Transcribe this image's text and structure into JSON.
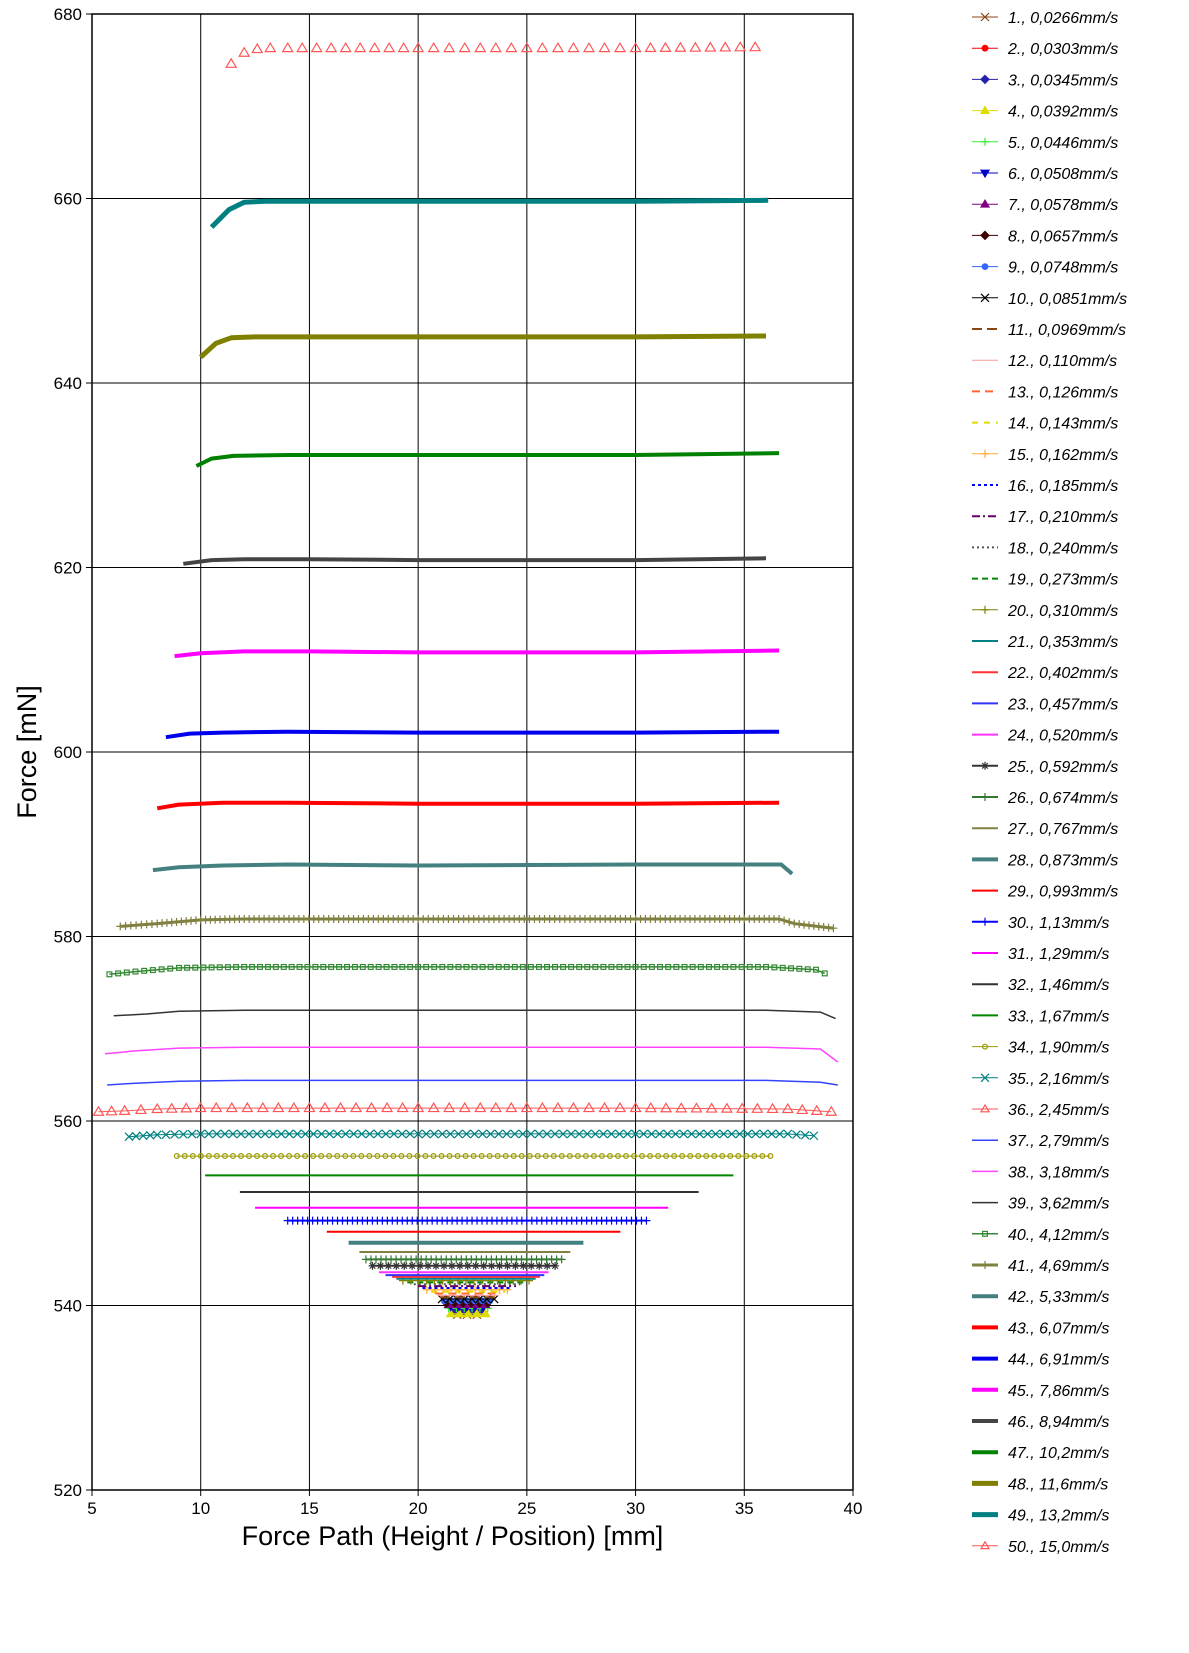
{
  "chart_data": {
    "type": "line",
    "xlabel": "Force Path  (Height / Position)  [mm]",
    "ylabel": "Force [mN]",
    "xlim": [
      5,
      40
    ],
    "ylim": [
      520,
      680
    ],
    "xticks": [
      5,
      10,
      15,
      20,
      25,
      30,
      35,
      40
    ],
    "yticks": [
      520,
      540,
      560,
      580,
      600,
      620,
      640,
      660,
      680
    ],
    "grid": true,
    "legend_position": "right",
    "series": [
      {
        "name": "1., 0,0266mm/s",
        "color": "#8B4513",
        "marker": "x",
        "lw": 1,
        "x": [
          21.8,
          22.7
        ],
        "y": [
          539,
          539
        ]
      },
      {
        "name": "2., 0,0303mm/s",
        "color": "#ff0000",
        "marker": "circle",
        "lw": 1,
        "x": [
          21.6,
          23.0
        ],
        "y": [
          539.3,
          539.3
        ]
      },
      {
        "name": "3., 0,0345mm/s",
        "color": "#2222aa",
        "marker": "diamond",
        "lw": 1,
        "x": [
          21.7,
          22.9
        ],
        "y": [
          539.5,
          539.5
        ]
      },
      {
        "name": "4., 0,0392mm/s",
        "color": "#dddd00",
        "marker": "triangle",
        "lw": 1,
        "x": [
          21.5,
          23.1
        ],
        "y": [
          539.1,
          539.1
        ]
      },
      {
        "name": "5., 0,0446mm/s",
        "color": "#33ee33",
        "marker": "plus",
        "lw": 1,
        "x": [
          21.4,
          23.2
        ],
        "y": [
          539.7,
          539.7
        ]
      },
      {
        "name": "6., 0,0508mm/s",
        "color": "#0000cc",
        "marker": "triangle-down",
        "lw": 1,
        "x": [
          21.5,
          23.0
        ],
        "y": [
          539.9,
          539.9
        ]
      },
      {
        "name": "7., 0,0578mm/s",
        "color": "#800080",
        "marker": "triangle",
        "lw": 1,
        "x": [
          21.4,
          23.1
        ],
        "y": [
          540.1,
          540.1
        ]
      },
      {
        "name": "8., 0,0657mm/s",
        "color": "#400000",
        "marker": "diamond",
        "lw": 1,
        "x": [
          21.3,
          23.2
        ],
        "y": [
          540.3,
          540.3
        ]
      },
      {
        "name": "9., 0,0748mm/s",
        "color": "#3366ff",
        "marker": "circle",
        "lw": 1,
        "x": [
          21.2,
          23.3
        ],
        "y": [
          540.5,
          540.5
        ]
      },
      {
        "name": "10., 0,0851mm/s",
        "color": "#000000",
        "marker": "x",
        "lw": 1,
        "x": [
          21.1,
          23.5
        ],
        "y": [
          540.7,
          540.7
        ]
      },
      {
        "name": "11., 0,0969mm/s",
        "color": "#8B4513",
        "dash": "10,5",
        "lw": 2,
        "x": [
          21.0,
          23.6
        ],
        "y": [
          540.9,
          540.9
        ]
      },
      {
        "name": "12., 0,110mm/s",
        "color": "#ff9999",
        "lw": 1,
        "x": [
          20.9,
          23.7
        ],
        "y": [
          541.1,
          541.1
        ]
      },
      {
        "name": "13., 0,126mm/s",
        "color": "#ff6633",
        "dash": "8,5",
        "lw": 2,
        "x": [
          20.8,
          23.8
        ],
        "y": [
          541.3,
          541.3
        ]
      },
      {
        "name": "14., 0,143mm/s",
        "color": "#dddd00",
        "dash": "6,6",
        "lw": 2,
        "x": [
          20.6,
          24.0
        ],
        "y": [
          541.5,
          541.5
        ]
      },
      {
        "name": "15., 0,162mm/s",
        "color": "#ffaa33",
        "marker": "plus",
        "lw": 1,
        "x": [
          20.4,
          24.1
        ],
        "y": [
          541.7,
          541.7
        ]
      },
      {
        "name": "16., 0,185mm/s",
        "color": "#0000ff",
        "dash": "3,3",
        "lw": 2,
        "x": [
          20.2,
          24.3
        ],
        "y": [
          541.9,
          541.9
        ]
      },
      {
        "name": "17., 0,210mm/s",
        "color": "#660066",
        "dash": "8,3,2,3",
        "lw": 2,
        "x": [
          20.0,
          24.5
        ],
        "y": [
          542.1,
          542.1
        ]
      },
      {
        "name": "18., 0,240mm/s",
        "color": "#555555",
        "dash": "2,3",
        "lw": 2,
        "x": [
          19.8,
          24.7
        ],
        "y": [
          542.3,
          542.3
        ]
      },
      {
        "name": "19., 0,273mm/s",
        "color": "#008800",
        "dash": "6,4",
        "lw": 2,
        "x": [
          19.5,
          24.9
        ],
        "y": [
          542.5,
          542.5
        ]
      },
      {
        "name": "20., 0,310mm/s",
        "color": "#808000",
        "marker": "plus",
        "lw": 1,
        "x": [
          19.3,
          25.1
        ],
        "y": [
          542.7,
          542.7
        ]
      },
      {
        "name": "21., 0,353mm/s",
        "color": "#008080",
        "lw": 2,
        "x": [
          19.0,
          25.4
        ],
        "y": [
          542.9,
          542.9
        ]
      },
      {
        "name": "22., 0,402mm/s",
        "color": "#ff3333",
        "lw": 2,
        "x": [
          18.8,
          25.6
        ],
        "y": [
          543.1,
          543.1
        ]
      },
      {
        "name": "23., 0,457mm/s",
        "color": "#3333ff",
        "lw": 2,
        "x": [
          18.5,
          25.8
        ],
        "y": [
          543.3,
          543.3
        ]
      },
      {
        "name": "24., 0,520mm/s",
        "color": "#ff33ff",
        "lw": 2,
        "x": [
          18.2,
          26.0
        ],
        "y": [
          543.6,
          543.6
        ]
      },
      {
        "name": "25., 0,592mm/s",
        "color": "#333333",
        "marker": "star",
        "lw": 2,
        "x": [
          17.9,
          26.3
        ],
        "y": [
          544.3,
          544.3
        ]
      },
      {
        "name": "26., 0,674mm/s",
        "color": "#337733",
        "marker": "plus",
        "lw": 2,
        "x": [
          17.6,
          26.6
        ],
        "y": [
          545.0,
          545.0
        ]
      },
      {
        "name": "27., 0,767mm/s",
        "color": "#808040",
        "lw": 2,
        "x": [
          17.3,
          27.0
        ],
        "y": [
          545.8,
          545.8
        ]
      },
      {
        "name": "28., 0,873mm/s",
        "color": "#448080",
        "lw": 4,
        "x": [
          16.8,
          27.6
        ],
        "y": [
          546.8,
          546.8
        ]
      },
      {
        "name": "29., 0,993mm/s",
        "color": "#ff0000",
        "lw": 2,
        "x": [
          15.8,
          29.3
        ],
        "y": [
          548.0,
          548.0
        ]
      },
      {
        "name": "30., 1,13mm/s",
        "color": "#0000ff",
        "marker": "plus",
        "lw": 2,
        "x": [
          14.0,
          30.5
        ],
        "y": [
          549.2,
          549.2
        ]
      },
      {
        "name": "31., 1,29mm/s",
        "color": "#ff00ff",
        "lw": 2,
        "x": [
          12.5,
          31.5
        ],
        "y": [
          550.6,
          550.6
        ]
      },
      {
        "name": "32., 1,46mm/s",
        "color": "#333333",
        "lw": 2,
        "x": [
          11.8,
          32.9
        ],
        "y": [
          552.3,
          552.3
        ]
      },
      {
        "name": "33., 1,67mm/s",
        "color": "#008800",
        "lw": 2,
        "x": [
          10.2,
          34.5
        ],
        "y": [
          554.1,
          554.1
        ]
      },
      {
        "name": "34., 1,90mm/s",
        "color": "#999900",
        "marker": "circle-open",
        "lw": 1,
        "x": [
          8.9,
          36.2
        ],
        "y": [
          556.2,
          556.2
        ]
      },
      {
        "name": "35., 2,16mm/s",
        "color": "#008080",
        "marker": "x",
        "lw": 1,
        "x": [
          6.7,
          8.0,
          10,
          20,
          30,
          37,
          38.2
        ],
        "y": [
          558.3,
          558.5,
          558.6,
          558.6,
          558.6,
          558.6,
          558.4
        ]
      },
      {
        "name": "36., 2,45mm/s",
        "color": "#ff5555",
        "marker": "triangle-open",
        "lw": 1,
        "x": [
          5.3,
          6.5,
          8,
          10,
          20,
          30,
          37,
          39.0
        ],
        "y": [
          561.0,
          561.1,
          561.3,
          561.4,
          561.4,
          561.4,
          561.3,
          561.0
        ]
      },
      {
        "name": "37., 2,79mm/s",
        "color": "#3344ff",
        "lw": 1.5,
        "x": [
          5.7,
          7,
          9,
          12,
          20,
          30,
          36,
          38.5,
          39.3
        ],
        "y": [
          563.9,
          564.1,
          564.3,
          564.4,
          564.4,
          564.4,
          564.4,
          564.2,
          563.9
        ]
      },
      {
        "name": "38., 3,18mm/s",
        "color": "#ff44ff",
        "lw": 1.5,
        "x": [
          5.6,
          7,
          9,
          12,
          20,
          30,
          36,
          38.5,
          39.3
        ],
        "y": [
          567.3,
          567.6,
          567.9,
          568.0,
          568.0,
          568.0,
          568.0,
          567.8,
          566.4
        ]
      },
      {
        "name": "39., 3,62mm/s",
        "color": "#333333",
        "lw": 1.5,
        "x": [
          6.0,
          7.5,
          9,
          12,
          20,
          30,
          36,
          38.5,
          39.2
        ],
        "y": [
          571.4,
          571.6,
          571.9,
          572.0,
          572.0,
          572.0,
          572.0,
          571.8,
          571.1
        ]
      },
      {
        "name": "40., 4,12mm/s",
        "color": "#338833",
        "marker": "square-open",
        "lw": 1.5,
        "x": [
          5.8,
          7,
          9,
          12,
          20,
          30,
          36,
          38.3,
          38.7
        ],
        "y": [
          575.9,
          576.2,
          576.6,
          576.7,
          576.7,
          576.7,
          576.7,
          576.4,
          576.0
        ]
      },
      {
        "name": "41., 4,69mm/s",
        "color": "#808040",
        "marker": "plus",
        "lw": 3,
        "x": [
          6.3,
          8,
          10,
          12,
          20,
          30,
          36.6,
          37.3,
          39.1
        ],
        "y": [
          581.1,
          581.4,
          581.8,
          581.9,
          581.9,
          581.9,
          581.9,
          581.4,
          580.9
        ]
      },
      {
        "name": "42., 5,33mm/s",
        "color": "#448080",
        "lw": 4,
        "x": [
          7.8,
          9,
          11,
          14,
          20,
          30,
          36.3,
          36.7,
          37.2
        ],
        "y": [
          587.2,
          587.5,
          587.7,
          587.8,
          587.7,
          587.8,
          587.8,
          587.8,
          586.8
        ]
      },
      {
        "name": "43., 6,07mm/s",
        "color": "#ff0000",
        "lw": 4,
        "x": [
          8.0,
          9,
          11,
          14,
          20,
          30,
          36.6
        ],
        "y": [
          593.9,
          594.3,
          594.5,
          594.5,
          594.4,
          594.4,
          594.5
        ]
      },
      {
        "name": "44., 6,91mm/s",
        "color": "#0000ee",
        "lw": 4,
        "x": [
          8.4,
          9.5,
          11,
          14,
          20,
          30,
          36.6
        ],
        "y": [
          601.6,
          602.0,
          602.1,
          602.2,
          602.1,
          602.1,
          602.2
        ]
      },
      {
        "name": "45., 7,86mm/s",
        "color": "#ff00ff",
        "lw": 4,
        "x": [
          8.8,
          10,
          12,
          15,
          20,
          30,
          36.6
        ],
        "y": [
          610.4,
          610.7,
          610.9,
          610.9,
          610.8,
          610.8,
          611.0
        ]
      },
      {
        "name": "46., 8,94mm/s",
        "color": "#444444",
        "lw": 4,
        "x": [
          9.2,
          10.5,
          12,
          15,
          20,
          30,
          36.0
        ],
        "y": [
          620.4,
          620.8,
          620.9,
          620.9,
          620.8,
          620.8,
          621.0
        ]
      },
      {
        "name": "47., 10,2mm/s",
        "color": "#008000",
        "lw": 4,
        "x": [
          9.8,
          10.5,
          11.5,
          14,
          20,
          30,
          36.6
        ],
        "y": [
          631.0,
          631.8,
          632.1,
          632.2,
          632.2,
          632.2,
          632.4
        ]
      },
      {
        "name": "48., 11,6mm/s",
        "color": "#808000",
        "lw": 5,
        "x": [
          10.0,
          10.7,
          11.4,
          12.5,
          15,
          20,
          30,
          36.0
        ],
        "y": [
          642.8,
          644.3,
          644.9,
          645.0,
          645.0,
          645.0,
          645.0,
          645.1
        ]
      },
      {
        "name": "49., 13,2mm/s",
        "color": "#008080",
        "lw": 5,
        "x": [
          10.5,
          11.3,
          12.0,
          13,
          20,
          30,
          36.1
        ],
        "y": [
          656.9,
          658.8,
          659.6,
          659.7,
          659.7,
          659.7,
          659.8
        ]
      },
      {
        "name": "50., 15,0mm/s",
        "color": "#ff5555",
        "marker": "triangle-open",
        "lw": 0,
        "x": [
          11.4,
          12.0,
          12.6,
          13.2,
          14,
          20,
          30,
          35.5
        ],
        "y": [
          674.6,
          675.8,
          676.2,
          676.3,
          676.3,
          676.3,
          676.3,
          676.4
        ]
      }
    ]
  }
}
